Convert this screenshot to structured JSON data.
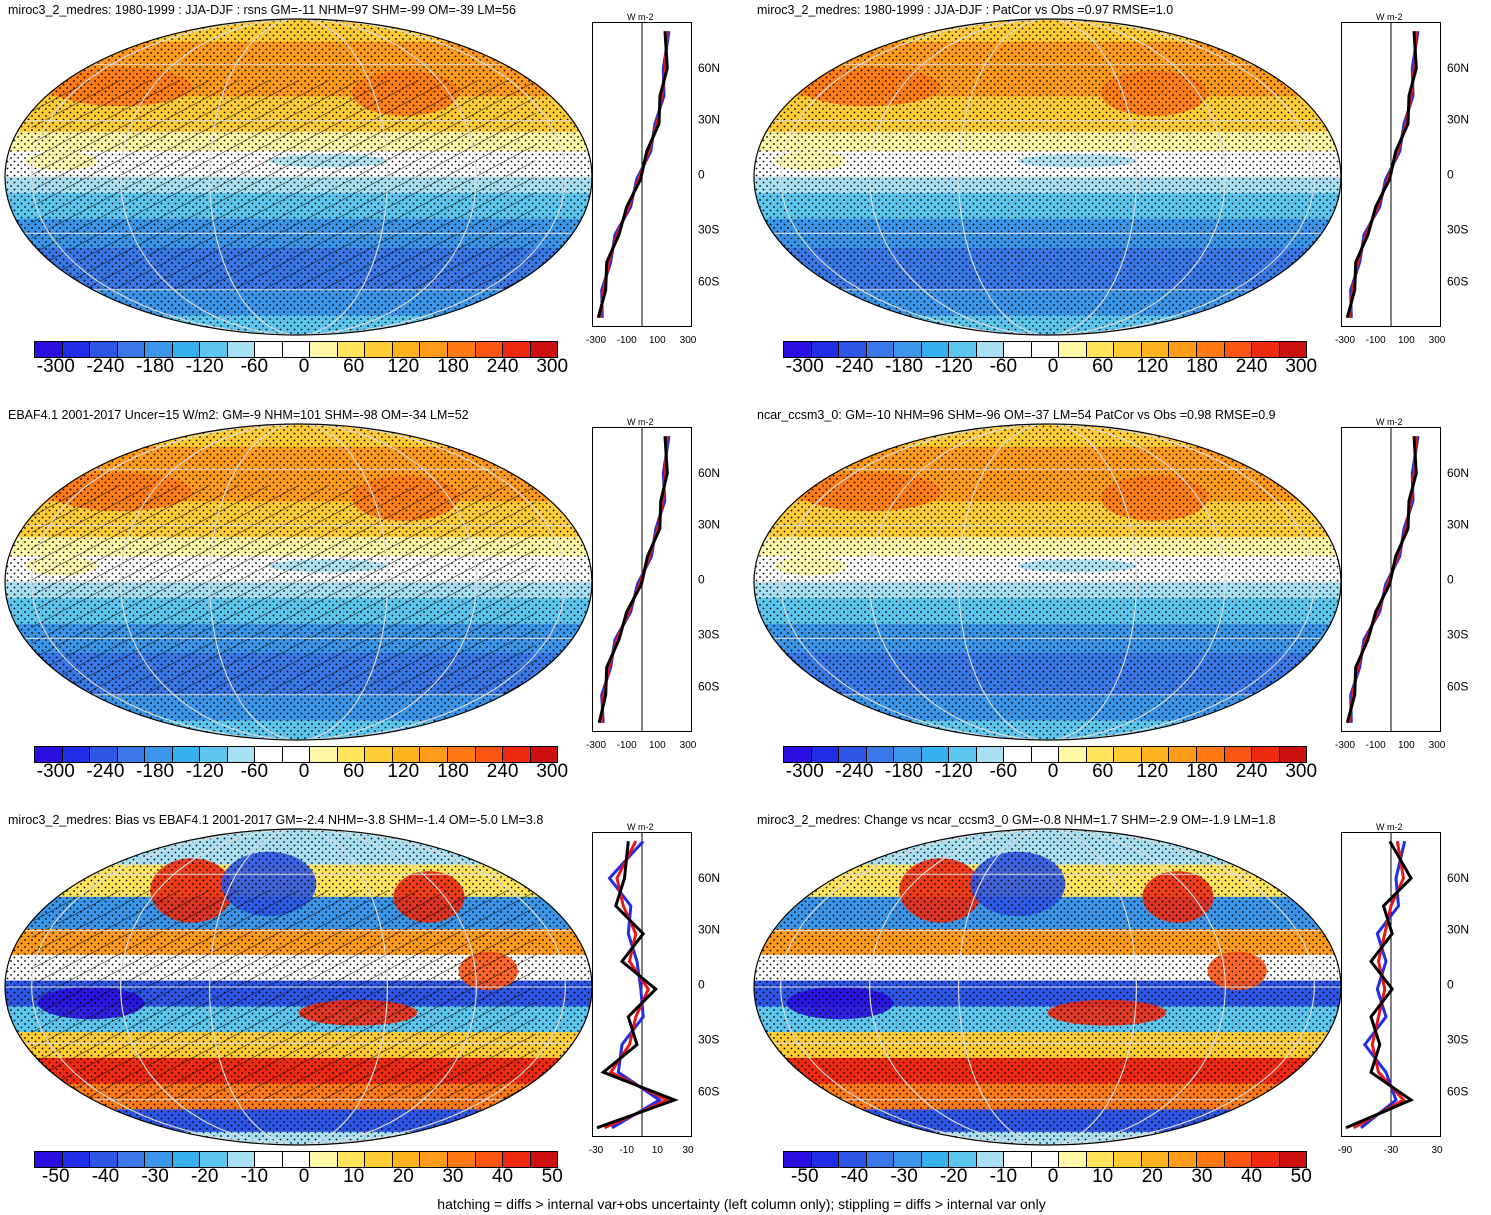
{
  "panels": [
    {
      "title": "miroc3_2_medres: 1980-1999 : JJA-DJF : rsns GM=-11 NHM=97 SHM=-99 OM=-39 LM=56",
      "kind": "mean",
      "hatch": true,
      "cbar_labels": [
        "-300",
        "-240",
        "-180",
        "-120",
        "-60",
        "0",
        "60",
        "120",
        "180",
        "240",
        "300"
      ],
      "profile_xticks": [
        "-300",
        "-100",
        "100",
        "300"
      ],
      "profile_unit": "W m-2"
    },
    {
      "title": "miroc3_2_medres: 1980-1999 : JJA-DJF : PatCor vs Obs =0.97 RMSE=1.0",
      "kind": "mean",
      "hatch": false,
      "cbar_labels": [
        "-300",
        "-240",
        "-180",
        "-120",
        "-60",
        "0",
        "60",
        "120",
        "180",
        "240",
        "300"
      ],
      "profile_xticks": [
        "-300",
        "-100",
        "100",
        "300"
      ],
      "profile_unit": "W m-2"
    },
    {
      "title": "EBAF4.1 2001-2017 Uncer=15 W/m2: GM=-9 NHM=101 SHM=-98 OM=-34 LM=52",
      "kind": "mean",
      "hatch": true,
      "cbar_labels": [
        "-300",
        "-240",
        "-180",
        "-120",
        "-60",
        "0",
        "60",
        "120",
        "180",
        "240",
        "300"
      ],
      "profile_xticks": [
        "-300",
        "-100",
        "100",
        "300"
      ],
      "profile_unit": "W m-2"
    },
    {
      "title": "ncar_ccsm3_0: GM=-10 NHM=96 SHM=-96 OM=-37 LM=54 PatCor vs Obs =0.98 RMSE=0.9",
      "kind": "mean",
      "hatch": false,
      "cbar_labels": [
        "-300",
        "-240",
        "-180",
        "-120",
        "-60",
        "0",
        "60",
        "120",
        "180",
        "240",
        "300"
      ],
      "profile_xticks": [
        "-300",
        "-100",
        "100",
        "300"
      ],
      "profile_unit": "W m-2"
    },
    {
      "title": "miroc3_2_medres: Bias vs EBAF4.1 2001-2017 GM=-2.4 NHM=-3.8 SHM=-1.4 OM=-5.0 LM=3.8",
      "kind": "diff",
      "hatch": true,
      "cbar_labels": [
        "-50",
        "-40",
        "-30",
        "-20",
        "-10",
        "0",
        "10",
        "20",
        "30",
        "40",
        "50"
      ],
      "profile_xticks": [
        "-30",
        "-10",
        "10",
        "30"
      ],
      "profile_unit": "W m-2"
    },
    {
      "title": "miroc3_2_medres: Change vs ncar_ccsm3_0 GM=-0.8 NHM=1.7 SHM=-2.9 OM=-1.9 LM=1.8",
      "kind": "diff",
      "hatch": false,
      "cbar_labels": [
        "-50",
        "-40",
        "-30",
        "-20",
        "-10",
        "0",
        "10",
        "20",
        "30",
        "40",
        "50"
      ],
      "profile_xticks": [
        "-90",
        "-30",
        "30"
      ],
      "profile_unit": "W m-2"
    }
  ],
  "lat_labels": [
    "60N",
    "30N",
    "0",
    "30S",
    "60S"
  ],
  "colormap": [
    "#2a0fe0",
    "#1f2ee6",
    "#2d55e6",
    "#3a78e8",
    "#3b96ea",
    "#36b0ee",
    "#5cc6ef",
    "#a8dff3",
    "#ffffff",
    "#ffffff",
    "#fff7a8",
    "#ffe45c",
    "#ffcc33",
    "#ffb41f",
    "#ff9a1a",
    "#ff7a14",
    "#ff5512",
    "#f02a10",
    "#cc1010"
  ],
  "profile_colors": {
    "model": "#e81818",
    "obs": "#1f2ee6",
    "other": "#000000"
  },
  "footnote": "hatching = diffs > internal var+obs uncertainty (left column only); stippling = diffs > internal var only",
  "chart_data": [
    {
      "type": "heatmap",
      "title": "miroc3_2_medres: 1980-1999 : JJA-DJF : rsns GM=-11 NHM=97 SHM=-99 OM=-39 LM=56",
      "colorbar": [
        -300,
        -240,
        -180,
        -120,
        -60,
        0,
        60,
        120,
        180,
        240,
        300
      ],
      "zonal_profile": {
        "lat": [
          80,
          60,
          45,
          30,
          15,
          0,
          -15,
          -30,
          -45,
          -60,
          -75
        ],
        "values": [
          150,
          140,
          120,
          90,
          40,
          -20,
          -80,
          -150,
          -200,
          -230,
          -250
        ]
      }
    },
    {
      "type": "heatmap",
      "title": "miroc3_2_medres: 1980-1999 : JJA-DJF : PatCor vs Obs =0.97 RMSE=1.0",
      "colorbar": [
        -300,
        -240,
        -180,
        -120,
        -60,
        0,
        60,
        120,
        180,
        240,
        300
      ],
      "zonal_profile": {
        "lat": [
          80,
          60,
          45,
          30,
          15,
          0,
          -15,
          -30,
          -45,
          -60,
          -75
        ],
        "values": [
          150,
          140,
          120,
          90,
          40,
          -20,
          -80,
          -150,
          -200,
          -230,
          -250
        ]
      }
    },
    {
      "type": "heatmap",
      "title": "EBAF4.1 2001-2017 Uncer=15 W/m2: GM=-9 NHM=101 SHM=-98 OM=-34 LM=52",
      "colorbar": [
        -300,
        -240,
        -180,
        -120,
        -60,
        0,
        60,
        120,
        180,
        240,
        300
      ],
      "zonal_profile": {
        "lat": [
          80,
          60,
          45,
          30,
          15,
          0,
          -15,
          -30,
          -45,
          -60,
          -75
        ],
        "values": [
          150,
          140,
          125,
          95,
          45,
          -15,
          -80,
          -150,
          -200,
          -230,
          -245
        ]
      }
    },
    {
      "type": "heatmap",
      "title": "ncar_ccsm3_0: GM=-10 NHM=96 SHM=-96 OM=-37 LM=54 PatCor vs Obs =0.98 RMSE=0.9",
      "colorbar": [
        -300,
        -240,
        -180,
        -120,
        -60,
        0,
        60,
        120,
        180,
        240,
        300
      ],
      "zonal_profile": {
        "lat": [
          80,
          60,
          45,
          30,
          15,
          0,
          -15,
          -30,
          -45,
          -60,
          -75
        ],
        "values": [
          150,
          140,
          120,
          90,
          40,
          -20,
          -80,
          -150,
          -200,
          -230,
          -250
        ]
      }
    },
    {
      "type": "heatmap",
      "title": "miroc3_2_medres: Bias vs EBAF4.1 2001-2017 GM=-2.4 NHM=-3.8 SHM=-1.4 OM=-5.0 LM=3.8",
      "colorbar": [
        -50,
        -40,
        -30,
        -20,
        -10,
        0,
        10,
        20,
        30,
        40,
        50
      ],
      "zonal_profile": {
        "lat": [
          80,
          60,
          45,
          30,
          15,
          0,
          -15,
          -30,
          -45,
          -60,
          -75
        ],
        "values": [
          -5,
          -20,
          -15,
          -5,
          -10,
          5,
          -5,
          -10,
          -25,
          20,
          -30
        ]
      }
    },
    {
      "type": "heatmap",
      "title": "miroc3_2_medres: Change vs ncar_ccsm3_0 GM=-0.8 NHM=1.7 SHM=-2.9 OM=-1.9 LM=1.8",
      "colorbar": [
        -50,
        -40,
        -30,
        -20,
        -10,
        0,
        10,
        20,
        30,
        40,
        50
      ],
      "zonal_profile": {
        "lat": [
          80,
          60,
          45,
          30,
          15,
          0,
          -15,
          -30,
          -45,
          -60,
          -75
        ],
        "values": [
          5,
          10,
          0,
          -5,
          -10,
          -5,
          -10,
          -15,
          -10,
          10,
          -30
        ]
      }
    }
  ]
}
